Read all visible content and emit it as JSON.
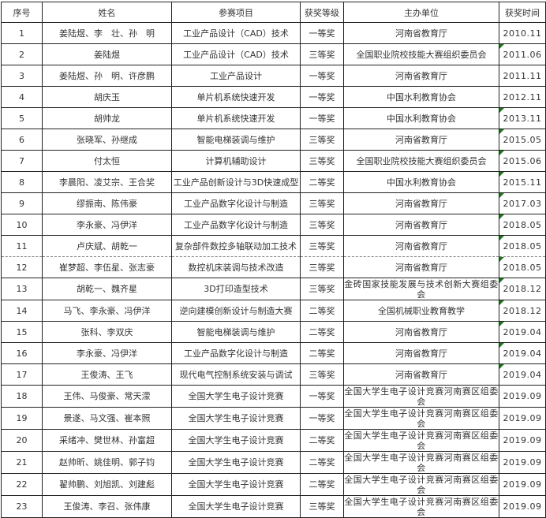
{
  "headers": [
    "序号",
    "姓名",
    "参赛项目",
    "获奖等级",
    "主办单位",
    "获奖时间"
  ],
  "colors": {
    "comment_marker": "#1a7a1a",
    "border": "#222222"
  },
  "rows": [
    {
      "no": "1",
      "names": "姜陆煜、李　壮、孙　明",
      "project": "工业产品设计（CAD）技术",
      "level": "一等奖",
      "org": "河南省教育厅",
      "date": "2010.11",
      "marker": false
    },
    {
      "no": "2",
      "names": "姜陆煜",
      "project": "工业产品设计（CAD）技术",
      "level": "三等奖",
      "org": "全国职业院校技能大赛组织委员会",
      "date": "2011.06",
      "marker": true
    },
    {
      "no": "3",
      "names": "姜陆煜、孙　明、许彦鹏",
      "project": "工业产品设计",
      "level": "一等奖",
      "org": "河南省教育厅",
      "date": "2011.11",
      "marker": false
    },
    {
      "no": "4",
      "names": "胡庆玉",
      "project": "单片机系统快速开发",
      "level": "一等奖",
      "org": "中国水利教育协会",
      "date": "2012.11",
      "marker": false
    },
    {
      "no": "5",
      "names": "胡帅龙",
      "project": "单片机系统快速开发",
      "level": "一等奖",
      "org": "中国水利教育协会",
      "date": "2013.11",
      "marker": true
    },
    {
      "no": "6",
      "names": "张晓军、孙继成",
      "project": "智能电梯装调与维护",
      "level": "三等奖",
      "org": "河南省教育厅",
      "date": "2015.05",
      "marker": true
    },
    {
      "no": "7",
      "names": "付太恒",
      "project": "计算机辅助设计",
      "level": "三等奖",
      "org": "全国职业院校技能大赛组织委员会",
      "date": "2015.06",
      "marker": true
    },
    {
      "no": "8",
      "names": "李晨阳、凌艾宗、王合奖",
      "project": "工业产品创新设计与3D快速成型",
      "level": "二等奖",
      "org": "中国水利教育协会",
      "date": "2015.11",
      "marker": true
    },
    {
      "no": "9",
      "names": "缪振南、陈伟豪",
      "project": "工业产品数字化设计与制造",
      "level": "三等奖",
      "org": "河南省教育厅",
      "date": "2017.03",
      "marker": true
    },
    {
      "no": "10",
      "names": "李永豪、冯伊洋",
      "project": "工业产品数字化设计与制造",
      "level": "三等奖",
      "org": "河南省教育厅",
      "date": "2018.05",
      "marker": true
    },
    {
      "no": "11",
      "names": "卢庆斌、胡乾一",
      "project": "复杂部件数控多轴联动加工技术",
      "level": "三等奖",
      "org": "河南省教育厅",
      "date": "2018.05",
      "marker": true
    },
    {
      "no": "12",
      "names": "崔梦超、李伍星、张志豪",
      "project": "数控机床装调与技术改造",
      "level": "三等奖",
      "org": "河南省教育厅",
      "date": "2018.05",
      "marker": true
    },
    {
      "no": "13",
      "names": "胡乾一、魏齐星",
      "project": "3D打印造型技术",
      "level": "三等奖",
      "org": "金砖国家技能发展与技术创新大赛组委会",
      "date": "2018.12",
      "marker": true,
      "wrap": true
    },
    {
      "no": "14",
      "names": "马飞、李永豪、冯伊洋",
      "project": "逆向建模创新设计与制造大赛",
      "level": "二等奖",
      "org": "全国机械职业教育教学",
      "date": "2018.12",
      "marker": true
    },
    {
      "no": "15",
      "names": "张科、李双庆",
      "project": "智能电梯装调与维护",
      "level": "二等奖",
      "org": "河南省教育厅",
      "date": "2019.04",
      "marker": true
    },
    {
      "no": "16",
      "names": "李永豪、冯伊洋",
      "project": "工业产品数字化设计与制造",
      "level": "二等奖",
      "org": "河南省教育厅",
      "date": "2019.04",
      "marker": true
    },
    {
      "no": "17",
      "names": "王俊涛、王飞",
      "project": "现代电气控制系统安装与调试",
      "level": "三等奖",
      "org": "河南省教育厅",
      "date": "2019.04",
      "marker": true
    },
    {
      "no": "18",
      "names": "王伟、马俊豪、常天濛",
      "project": "全国大学生电子设计竞赛",
      "level": "一等奖",
      "org": "全国大学生电子设计竞赛河南赛区组委会",
      "date": "2019.09",
      "marker": false,
      "wrap": true
    },
    {
      "no": "19",
      "names": "景遂、马文强、崔本照",
      "project": "全国大学生电子设计竞赛",
      "level": "一等奖",
      "org": "全国大学生电子设计竞赛河南赛区组委会",
      "date": "2019.09",
      "marker": false,
      "wrap": true
    },
    {
      "no": "20",
      "names": "采绪冲、樊世林、孙富超",
      "project": "全国大学生电子设计竞赛",
      "level": "二等奖",
      "org": "全国大学生电子设计竞赛河南赛区组委会",
      "date": "2019.09",
      "marker": false,
      "wrap": true
    },
    {
      "no": "21",
      "names": "赵帅昕、姚佳明、郭子钧",
      "project": "全国大学生电子设计竞赛",
      "level": "二等奖",
      "org": "全国大学生电子设计竞赛河南赛区组委会",
      "date": "2019.09",
      "marker": false,
      "wrap": true
    },
    {
      "no": "22",
      "names": "翟帅鹏、刘旭凯、刘建彪",
      "project": "全国大学生电子设计竞赛",
      "level": "二等奖",
      "org": "全国大学生电子设计竞赛河南赛区组委会",
      "date": "2019.09",
      "marker": false,
      "wrap": true
    },
    {
      "no": "23",
      "names": "王俊涛、李召、张伟康",
      "project": "全国大学生电子设计竞赛",
      "level": "三等奖",
      "org": "全国大学生电子设计竞赛河南赛区组委会",
      "date": "2019.09",
      "marker": false,
      "wrap": true
    }
  ]
}
